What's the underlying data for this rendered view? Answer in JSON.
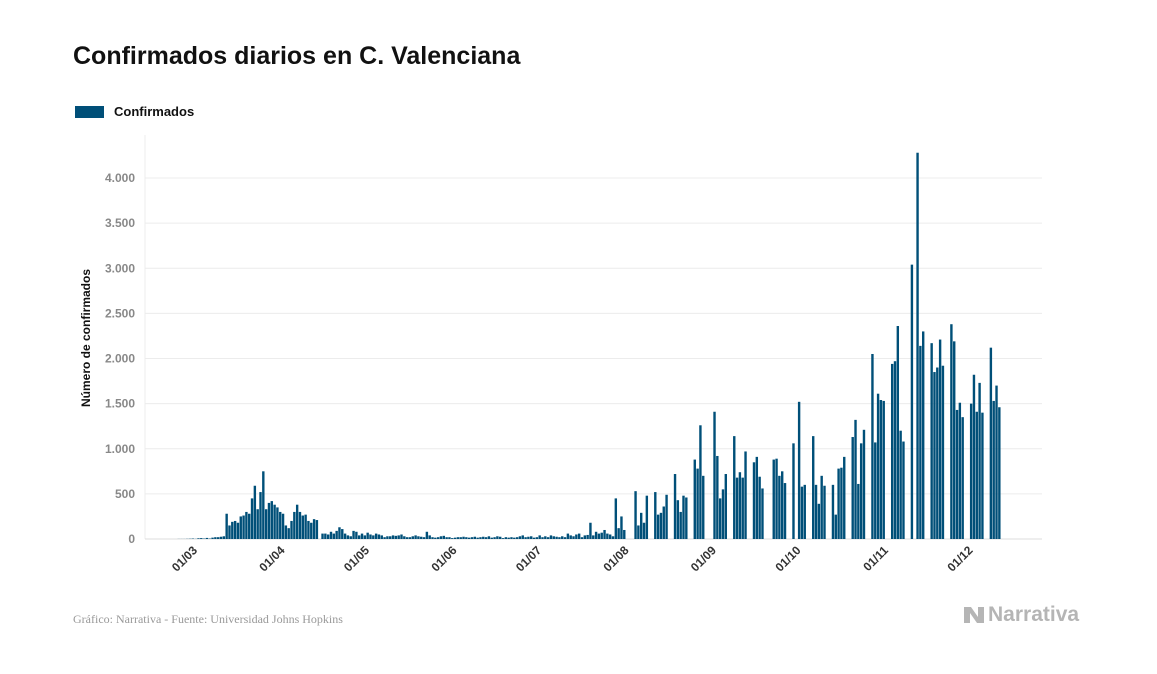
{
  "chart_data": {
    "type": "bar",
    "title": "Confirmados diarios en C. Valenciana",
    "legend": [
      {
        "label": "Confirmados",
        "color": "#004f78"
      }
    ],
    "legend_position": "top-left",
    "xlabel": "",
    "ylabel": "Número de confirmados",
    "x_start": "2020-02-25",
    "x_step": "1 day",
    "ylim": [
      0,
      4300
    ],
    "grid": true,
    "yticks": [
      0,
      500,
      1000,
      1500,
      2000,
      2500,
      3000,
      3500,
      4000
    ],
    "ytick_labels": [
      "0",
      "500",
      "1.000",
      "1.500",
      "2.000",
      "2.500",
      "3.000",
      "3.500",
      "4.000"
    ],
    "xticks": [
      {
        "day_index": 5,
        "label": "01/03"
      },
      {
        "day_index": 36,
        "label": "01/04"
      },
      {
        "day_index": 66,
        "label": "01/05"
      },
      {
        "day_index": 97,
        "label": "01/06"
      },
      {
        "day_index": 127,
        "label": "01/07"
      },
      {
        "day_index": 158,
        "label": "01/08"
      },
      {
        "day_index": 189,
        "label": "01/09"
      },
      {
        "day_index": 219,
        "label": "01/10"
      },
      {
        "day_index": 250,
        "label": "01/11"
      },
      {
        "day_index": 280,
        "label": "01/12"
      }
    ],
    "values": [
      0,
      1,
      1,
      1,
      2,
      3,
      5,
      2,
      8,
      10,
      5,
      12,
      5,
      15,
      20,
      20,
      25,
      30,
      280,
      150,
      190,
      200,
      180,
      250,
      260,
      300,
      280,
      450,
      590,
      330,
      520,
      750,
      330,
      400,
      420,
      380,
      350,
      300,
      280,
      150,
      120,
      200,
      300,
      380,
      300,
      260,
      270,
      200,
      180,
      220,
      210,
      0,
      60,
      60,
      50,
      80,
      60,
      90,
      130,
      110,
      60,
      40,
      30,
      90,
      80,
      40,
      60,
      40,
      70,
      50,
      40,
      60,
      50,
      40,
      20,
      30,
      30,
      40,
      35,
      40,
      50,
      30,
      20,
      20,
      30,
      40,
      30,
      25,
      20,
      80,
      40,
      20,
      15,
      20,
      30,
      35,
      20,
      20,
      10,
      15,
      20,
      20,
      25,
      20,
      15,
      20,
      25,
      15,
      20,
      25,
      20,
      30,
      15,
      20,
      30,
      25,
      10,
      20,
      15,
      20,
      15,
      20,
      30,
      40,
      20,
      25,
      30,
      15,
      20,
      40,
      20,
      30,
      20,
      40,
      30,
      25,
      20,
      30,
      20,
      60,
      40,
      30,
      50,
      60,
      20,
      40,
      45,
      180,
      40,
      80,
      60,
      70,
      100,
      60,
      50,
      30,
      450,
      120,
      250,
      100,
      0,
      0,
      0,
      530,
      150,
      290,
      180,
      480,
      0,
      0,
      520,
      270,
      290,
      360,
      490,
      0,
      0,
      720,
      430,
      300,
      480,
      460,
      0,
      0,
      880,
      780,
      1260,
      700,
      0,
      0,
      0,
      1410,
      920,
      450,
      550,
      720,
      0,
      0,
      1140,
      680,
      740,
      680,
      970,
      0,
      0,
      850,
      910,
      690,
      560,
      0,
      0,
      0,
      880,
      890,
      700,
      750,
      620,
      0,
      0,
      1060,
      0,
      1520,
      580,
      600,
      0,
      0,
      1140,
      600,
      390,
      700,
      590,
      0,
      0,
      600,
      270,
      780,
      790,
      910,
      0,
      0,
      1130,
      1320,
      610,
      1060,
      1210,
      0,
      0,
      2050,
      1070,
      1610,
      1540,
      1530,
      0,
      0,
      1940,
      1970,
      2360,
      1200,
      1080,
      0,
      0,
      3040,
      0,
      4280,
      2140,
      2300,
      0,
      0,
      2170,
      1850,
      1900,
      2210,
      1920,
      0,
      0,
      2380,
      2190,
      1430,
      1510,
      1350,
      0,
      0,
      1500,
      1820,
      1410,
      1730,
      1400,
      0,
      0,
      2120,
      1530,
      1700,
      1460
    ]
  },
  "footer": "Gráfico: Narrativa - Fuente: Universidad Johns Hopkins",
  "logo_text": "Narrativa"
}
